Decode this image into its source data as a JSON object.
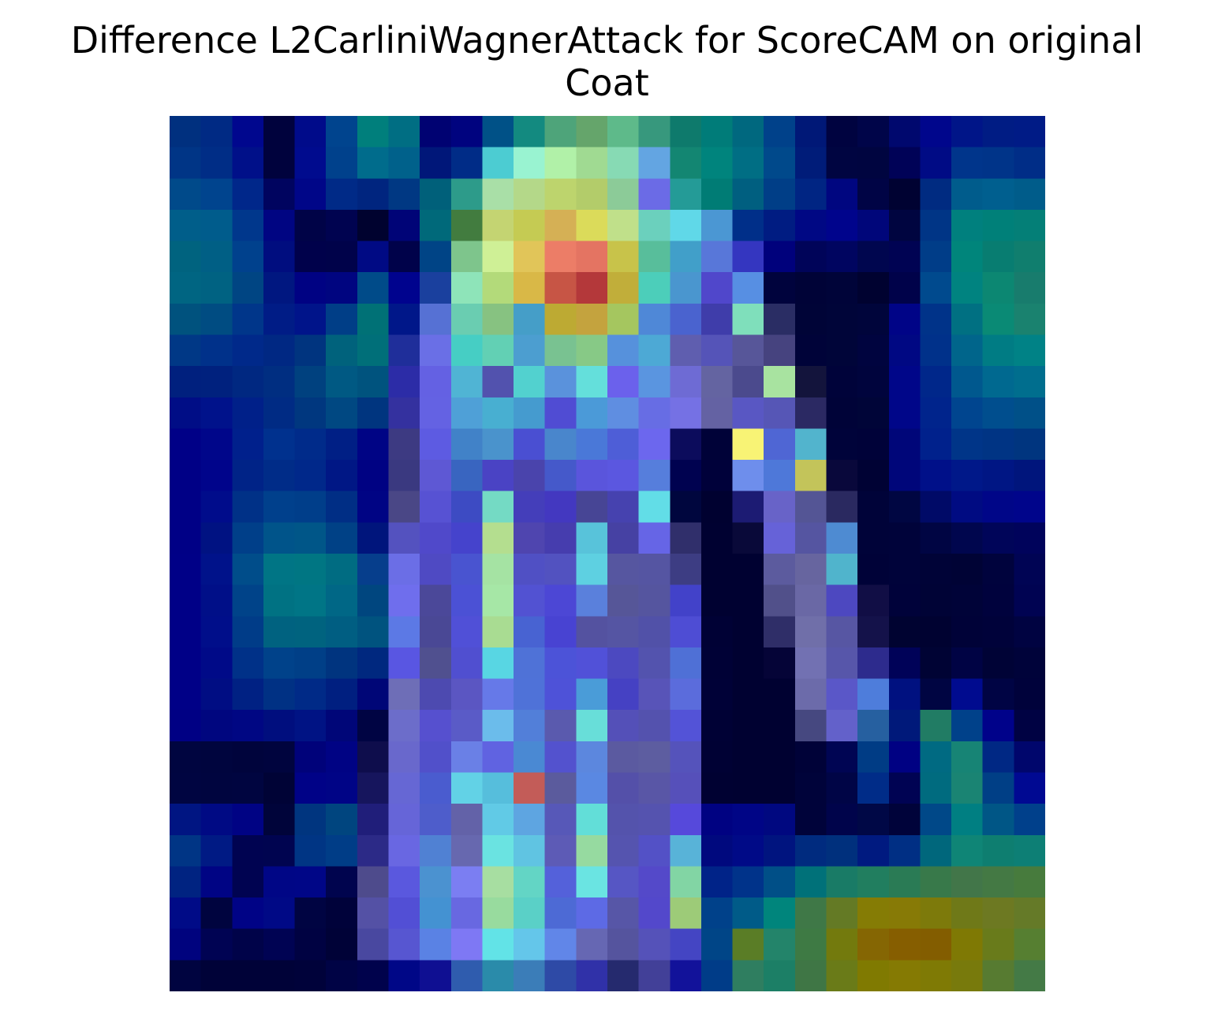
{
  "figure": {
    "title_line1": "Difference L2CarliniWagnerAttack for ScoreCAM on original",
    "title_line2": "Coat"
  },
  "image": {
    "grid_rows": 28,
    "grid_cols": 28,
    "rows": [
      [
        "#00307F",
        "#002A84",
        "#00078E",
        "#00023D",
        "#000B8A",
        "#00448E",
        "#007F7C",
        "#006E83",
        "#000272",
        "#00037F",
        "#005187",
        "#138A80",
        "#4EA47A",
        "#65A56B",
        "#5EBA8A",
        "#37987D",
        "#0E7A6C",
        "#007C79",
        "#00687F",
        "#00418A",
        "#001877",
        "#000340",
        "#000549",
        "#00086E",
        "#00068C",
        "#001588",
        "#001C84",
        "#001B86"
      ],
      [
        "#003586",
        "#002D86",
        "#001089",
        "#00023D",
        "#000B8E",
        "#00418C",
        "#006C8C",
        "#00618B",
        "#001779",
        "#002C87",
        "#4CCCD2",
        "#99F3D1",
        "#B1F1A8",
        "#A0DA92",
        "#87DAB4",
        "#63A5E2",
        "#138672",
        "#00847D",
        "#006E84",
        "#00498B",
        "#001C79",
        "#000541",
        "#000540",
        "#000257",
        "#000B85",
        "#00358B",
        "#003489",
        "#002D87"
      ],
      [
        "#004A8A",
        "#00448E",
        "#00278A",
        "#00045F",
        "#000688",
        "#002A87",
        "#00257F",
        "#003883",
        "#00607A",
        "#2D9B8A",
        "#A9DFA7",
        "#B4D889",
        "#BDD46D",
        "#B3CC6A",
        "#8CCB98",
        "#6B6BE6",
        "#249B97",
        "#007C75",
        "#005F80",
        "#003E87",
        "#002583",
        "#000680",
        "#000445",
        "#000232",
        "#002B81",
        "#005C8C",
        "#005F8F",
        "#005C8A"
      ],
      [
        "#005E8A",
        "#005C8C",
        "#00378C",
        "#000582",
        "#000347",
        "#000350",
        "#00022F",
        "#000477",
        "#00697A",
        "#427C3F",
        "#C4D472",
        "#C5CB53",
        "#D5B055",
        "#DBDB5A",
        "#C0E08A",
        "#6BD0BD",
        "#60D8E8",
        "#4B97D3",
        "#002F89",
        "#001C82",
        "#000884",
        "#00048C",
        "#00067A",
        "#000540",
        "#003586",
        "#00807E",
        "#008079",
        "#047F77"
      ],
      [
        "#00637F",
        "#005F85",
        "#00418D",
        "#000D7F",
        "#00014B",
        "#00024A",
        "#000A84",
        "#00024A",
        "#004486",
        "#7EC58C",
        "#CFF096",
        "#E1C559",
        "#EC7D67",
        "#E47462",
        "#C8C34A",
        "#58BE9B",
        "#419FC9",
        "#5877D9",
        "#3436C0",
        "#00017C",
        "#000459",
        "#000560",
        "#00064F",
        "#000353",
        "#003D88",
        "#00857B",
        "#087D71",
        "#107E6E"
      ],
      [
        "#006582",
        "#006282",
        "#004583",
        "#001780",
        "#000283",
        "#000580",
        "#004B89",
        "#00038E",
        "#1A409E",
        "#8EE4B9",
        "#B3DA7A",
        "#D9B847",
        "#C75545",
        "#B4383A",
        "#C1AE3A",
        "#4CCEBA",
        "#4A96CF",
        "#5047CB",
        "#578FE3",
        "#00033D",
        "#000337",
        "#000439",
        "#000230",
        "#00024A",
        "#004A8E",
        "#008380",
        "#0C8772",
        "#187C6D"
      ],
      [
        "#00527E",
        "#004C82",
        "#00368A",
        "#001C86",
        "#00148A",
        "#003E87",
        "#007176",
        "#001789",
        "#5671D4",
        "#6ACDB1",
        "#87C281",
        "#459EC8",
        "#BDAA33",
        "#C4A33E",
        "#A5C65F",
        "#4F88D7",
        "#4A63CF",
        "#3F3DAA",
        "#7FDFBB",
        "#2A2D64",
        "#000437",
        "#000539",
        "#00053B",
        "#000487",
        "#003389",
        "#007082",
        "#0A8A75",
        "#1A826F"
      ],
      [
        "#003886",
        "#00318A",
        "#00298A",
        "#002883",
        "#00347F",
        "#00627C",
        "#006F79",
        "#1F2E9A",
        "#6A6FE6",
        "#46CEC4",
        "#62D0B4",
        "#4C9ED0",
        "#79C291",
        "#87C986",
        "#5691DC",
        "#4DA9D5",
        "#5F5EAF",
        "#5554B8",
        "#575699",
        "#46437F",
        "#000339",
        "#000539",
        "#00043F",
        "#000883",
        "#00318A",
        "#00658B",
        "#007C84",
        "#008286"
      ],
      [
        "#00207E",
        "#00217E",
        "#002881",
        "#002E81",
        "#00417F",
        "#005983",
        "#00537E",
        "#2C2CA7",
        "#6461E3",
        "#50B4D4",
        "#5252AE",
        "#52D1CF",
        "#5A92DC",
        "#64DFDB",
        "#6B61EC",
        "#5A95E0",
        "#6E6BD4",
        "#6464A1",
        "#4B4A8D",
        "#A8E3A0",
        "#13143C",
        "#00033A",
        "#00043D",
        "#000689",
        "#00278A",
        "#00588E",
        "#006990",
        "#006E8E"
      ],
      [
        "#000D86",
        "#00128B",
        "#002089",
        "#002B84",
        "#00377F",
        "#004882",
        "#00357F",
        "#34319F",
        "#6462E3",
        "#4FA0D7",
        "#48AFD1",
        "#459BCF",
        "#504CD3",
        "#4B9AD8",
        "#5F8EE1",
        "#676DE4",
        "#7571E4",
        "#6462A3",
        "#5957C3",
        "#5656B6",
        "#2B2963",
        "#000338",
        "#000538",
        "#000689",
        "#00248C",
        "#00458F",
        "#004E8E",
        "#005088"
      ],
      [
        "#000087",
        "#00068A",
        "#00208C",
        "#00318E",
        "#002B8A",
        "#001F85",
        "#000485",
        "#3D3A82",
        "#5D5BE2",
        "#4182C8",
        "#4A93CC",
        "#4A4FD2",
        "#4986CC",
        "#4A78D8",
        "#4E5ED7",
        "#6C67EE",
        "#0C0C5C",
        "#000238",
        "#F8F375",
        "#4F66D4",
        "#52B4CD",
        "#00033A",
        "#000239",
        "#000679",
        "#00218C",
        "#003588",
        "#003484",
        "#00357F"
      ],
      [
        "#000086",
        "#00048B",
        "#002387",
        "#002C88",
        "#00288A",
        "#001785",
        "#000283",
        "#3A3980",
        "#5E58D4",
        "#3965C0",
        "#4A43C4",
        "#4A44AC",
        "#4559CA",
        "#5A55DC",
        "#5B57E0",
        "#567EDC",
        "#000250",
        "#00013A",
        "#6E8EEC",
        "#4E78D9",
        "#C3C45A",
        "#09083B",
        "#000234",
        "#00067A",
        "#001089",
        "#001889",
        "#001684",
        "#00157C"
      ],
      [
        "#000086",
        "#000C8B",
        "#003187",
        "#00408C",
        "#003E8A",
        "#002E85",
        "#000484",
        "#4A4786",
        "#5752D3",
        "#3D4BC3",
        "#74DAC4",
        "#443EBA",
        "#4338C0",
        "#474595",
        "#4642AF",
        "#62DDE7",
        "#00063E",
        "#000130",
        "#1C1B73",
        "#6863C8",
        "#545595",
        "#2A2960",
        "#000339",
        "#000642",
        "#000A67",
        "#000B82",
        "#000688",
        "#00058B"
      ],
      [
        "#000086",
        "#001282",
        "#003F89",
        "#00548A",
        "#005688",
        "#004186",
        "#00157C",
        "#5452BF",
        "#5049CA",
        "#4543CC",
        "#B4DE8F",
        "#4F45AF",
        "#463DAE",
        "#58C3DA",
        "#4641A3",
        "#6665E6",
        "#302F6B",
        "#000131",
        "#090939",
        "#6662D8",
        "#5555A1",
        "#4E8BD2",
        "#000339",
        "#00033A",
        "#000543",
        "#00064E",
        "#000559",
        "#00035B"
      ],
      [
        "#000087",
        "#00128A",
        "#004D8A",
        "#007585",
        "#007683",
        "#006C82",
        "#063E8C",
        "#6B6EE6",
        "#4F4AC3",
        "#4954D0",
        "#A5E3A3",
        "#5050C4",
        "#5252C0",
        "#5ED0E1",
        "#5656A0",
        "#5555A2",
        "#3D3D83",
        "#000131",
        "#000131",
        "#5C5B9E",
        "#67659F",
        "#50B4CC",
        "#000238",
        "#00033A",
        "#000337",
        "#000335",
        "#00033D",
        "#000454"
      ],
      [
        "#000087",
        "#000F88",
        "#004389",
        "#007283",
        "#007586",
        "#006786",
        "#00467F",
        "#6F6EED",
        "#4B4899",
        "#4B51D5",
        "#A6E7A6",
        "#5252D2",
        "#4C47D5",
        "#5A80DC",
        "#565698",
        "#55559F",
        "#4242C9",
        "#000131",
        "#000131",
        "#51508A",
        "#6A68A5",
        "#4D48C0",
        "#110E45",
        "#00023A",
        "#000336",
        "#000338",
        "#00023D",
        "#000352"
      ],
      [
        "#000087",
        "#000E8A",
        "#003C88",
        "#006280",
        "#00637F",
        "#005E82",
        "#00537F",
        "#5C79E5",
        "#4A4895",
        "#5050D7",
        "#A9DC92",
        "#4863D2",
        "#4843D2",
        "#5452A0",
        "#5555A3",
        "#5151A8",
        "#4E4DD4",
        "#000135",
        "#000131",
        "#2F2E68",
        "#706FA9",
        "#5756A3",
        "#14124A",
        "#000331",
        "#000231",
        "#000238",
        "#00023A",
        "#000341"
      ],
      [
        "#000087",
        "#000A88",
        "#003188",
        "#00428A",
        "#003F87",
        "#00347F",
        "#00287F",
        "#5956E2",
        "#50508F",
        "#504FD0",
        "#58D6E3",
        "#4F72D7",
        "#4C53D8",
        "#5151D8",
        "#4C49C0",
        "#5353AE",
        "#4F70D6",
        "#000136",
        "#000131",
        "#050437",
        "#7271B2",
        "#5756AA",
        "#2D2B8D",
        "#000258",
        "#000334",
        "#000344",
        "#000336",
        "#00033A"
      ],
      [
        "#000087",
        "#000D83",
        "#002183",
        "#003184",
        "#002A87",
        "#001F80",
        "#000677",
        "#6E6EB7",
        "#4D4AB0",
        "#5B56C2",
        "#6679E8",
        "#4F72D8",
        "#4E52D8",
        "#4A9CD8",
        "#4541C3",
        "#5854B8",
        "#5B6CDC",
        "#000137",
        "#000131",
        "#000131",
        "#6C6BAA",
        "#5A57C8",
        "#4E7DDB",
        "#001180",
        "#000542",
        "#000B8F",
        "#000444",
        "#00023B"
      ],
      [
        "#000084",
        "#00067F",
        "#000783",
        "#000E7E",
        "#001384",
        "#000678",
        "#000443",
        "#6C6DCA",
        "#5650CF",
        "#5A5BC7",
        "#6BBCEB",
        "#527FD9",
        "#5A5AAE",
        "#68DED9",
        "#5450B8",
        "#5452AE",
        "#5353D7",
        "#000135",
        "#000131",
        "#000131",
        "#464880",
        "#6361CA",
        "#2660A0",
        "#00197A",
        "#217C64",
        "#00418A",
        "#00028A",
        "#000243"
      ],
      [
        "#000540",
        "#00053E",
        "#00043C",
        "#00043E",
        "#00027A",
        "#000384",
        "#0E0D4C",
        "#6968CC",
        "#5150CA",
        "#6A80E6",
        "#6063E1",
        "#4A89D3",
        "#5352CE",
        "#5C87DE",
        "#5B5AA0",
        "#5D5DA0",
        "#5553BB",
        "#000134",
        "#000131",
        "#000131",
        "#000238",
        "#000553",
        "#003C85",
        "#000183",
        "#006A82",
        "#178475",
        "#002884",
        "#00066C"
      ],
      [
        "#000541",
        "#00053F",
        "#000540",
        "#000336",
        "#000287",
        "#000486",
        "#16155D",
        "#6667D4",
        "#4A5CCF",
        "#62D2E6",
        "#56BEDC",
        "#C35C58",
        "#5B5B9D",
        "#5A88E2",
        "#5450A9",
        "#5956A6",
        "#5650BA",
        "#000132",
        "#000131",
        "#000131",
        "#00033A",
        "#000546",
        "#002C88",
        "#000353",
        "#006B7F",
        "#1A8473",
        "#003F86",
        "#000992"
      ],
      [
        "#001582",
        "#000A84",
        "#000384",
        "#00043A",
        "#00357F",
        "#00457F",
        "#201E7A",
        "#6665D8",
        "#4E5DCB",
        "#6362A8",
        "#61CAE6",
        "#5EA5E1",
        "#5758B8",
        "#62DED8",
        "#5453AC",
        "#5553AF",
        "#5649DB",
        "#000282",
        "#000586",
        "#000880",
        "#00033A",
        "#00044B",
        "#000846",
        "#00033A",
        "#004888",
        "#007F82",
        "#005686",
        "#00408B"
      ],
      [
        "#003585",
        "#001A84",
        "#000351",
        "#000450",
        "#003584",
        "#003D87",
        "#2C2A87",
        "#6967E2",
        "#5081D3",
        "#6768AF",
        "#6AE3E1",
        "#60C4E2",
        "#5D5BB6",
        "#96DAA0",
        "#5554AF",
        "#5351C6",
        "#58B3D8",
        "#00097E",
        "#000A87",
        "#00147F",
        "#002B7F",
        "#00307D",
        "#001A80",
        "#002F84",
        "#00677C",
        "#0F8576",
        "#0E7E70",
        "#0D7F75"
      ],
      [
        "#002381",
        "#000484",
        "#000351",
        "#000686",
        "#000687",
        "#00044E",
        "#4E4B8C",
        "#5A58DE",
        "#4B92D0",
        "#7B7EF2",
        "#A7DEA1",
        "#63D5C5",
        "#5461DA",
        "#6AE4E2",
        "#5656C4",
        "#5449C9",
        "#82D5A4",
        "#002388",
        "#00338A",
        "#004F87",
        "#007179",
        "#197B66",
        "#217E5F",
        "#2A7B55",
        "#38794A",
        "#427649",
        "#447944",
        "#477B3D"
      ],
      [
        "#000B87",
        "#00043F",
        "#000386",
        "#000986",
        "#000442",
        "#00023A",
        "#5451A5",
        "#524FD5",
        "#4492D2",
        "#6868E1",
        "#98DB9E",
        "#5AD0C7",
        "#4D6AD5",
        "#5D6AE5",
        "#5756A7",
        "#5348CB",
        "#9DCB78",
        "#00418A",
        "#005B88",
        "#00857C",
        "#3F7847",
        "#647A25",
        "#857C05",
        "#877A06",
        "#7D7A0B",
        "#6F7918",
        "#6D7922",
        "#657A28"
      ],
      [
        "#00037E",
        "#000353",
        "#000349",
        "#000353",
        "#000242",
        "#000237",
        "#4948A0",
        "#5756D1",
        "#5A82E4",
        "#7E78F4",
        "#62E3E7",
        "#64C6EA",
        "#6186E8",
        "#6667B3",
        "#55549E",
        "#5552B9",
        "#4445C3",
        "#004587",
        "#5A7D26",
        "#23846A",
        "#3E7A44",
        "#737A0D",
        "#856603",
        "#865E00",
        "#835D00",
        "#7F7904",
        "#697B1B",
        "#567F31"
      ],
      [
        "#000440",
        "#000238",
        "#000238",
        "#000238",
        "#00023A",
        "#000345",
        "#00024C",
        "#000787",
        "#0F0F92",
        "#2F5CAE",
        "#2A8BAA",
        "#3B7DB8",
        "#2E4AA6",
        "#3031A8",
        "#252A6E",
        "#424098",
        "#12129A",
        "#003C88",
        "#2F7E60",
        "#1C7F66",
        "#3F7645",
        "#6A7B18",
        "#807A01",
        "#857A03",
        "#7F7A05",
        "#787A0C",
        "#577B31",
        "#447A46"
      ]
    ]
  }
}
